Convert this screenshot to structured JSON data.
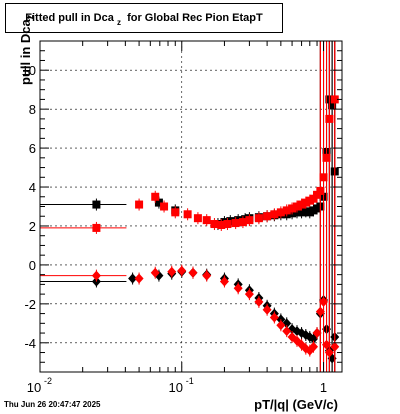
{
  "title_main": "Fitted pull in Dca",
  "title_sub": "z",
  "title_rest": "for Global Rec Pion EtapT",
  "ylabel_main": "pull in Dca",
  "ylabel_sub": "z",
  "xlabel": "pT/|q| (GeV/c)",
  "footer": "Thu Jun 26 20:47:47 2025",
  "chart_data": {
    "type": "scatter",
    "title": "Fitted pull in Dca z for Global Rec Pion EtapT",
    "xlabel": "pT/|q| (GeV/c)",
    "ylabel": "pull in Dca z",
    "xscale": "log",
    "xlim": [
      0.01,
      1.35
    ],
    "ylim": [
      -5.5,
      11.5
    ],
    "grid": true,
    "x_ticks": [
      0.01,
      0.1,
      1
    ],
    "x_tick_labels": [
      "10",
      "10",
      "1"
    ],
    "x_tick_exponents": [
      "-2",
      "-1",
      ""
    ],
    "y_ticks": [
      -4,
      -2,
      0,
      2,
      4,
      6,
      8,
      10
    ],
    "y_tick_labels": [
      "-4",
      "-2",
      "0",
      "2",
      "4",
      "6",
      "8",
      "10"
    ],
    "series": [
      {
        "color": "#000000",
        "marker": "square",
        "x": [
          0.025,
          0.069,
          0.09,
          0.18,
          0.2,
          0.22,
          0.25,
          0.28,
          0.3,
          0.35,
          0.4,
          0.45,
          0.5,
          0.55,
          0.6,
          0.65,
          0.7,
          0.75,
          0.8,
          0.85,
          0.9,
          0.95,
          1.0,
          1.05,
          1.1,
          1.15,
          1.2
        ],
        "y": [
          3.1,
          3.2,
          2.8,
          2.1,
          2.2,
          2.25,
          2.3,
          2.35,
          2.4,
          2.45,
          2.5,
          2.55,
          2.6,
          2.6,
          2.65,
          2.7,
          2.7,
          2.75,
          2.7,
          2.8,
          2.9,
          3.0,
          3.5,
          5.8,
          8.5,
          8.2,
          4.8
        ]
      },
      {
        "color": "#000000",
        "marker": "diamond",
        "x": [
          0.025,
          0.045,
          0.069,
          0.085,
          0.1,
          0.12,
          0.15,
          0.2,
          0.25,
          0.3,
          0.35,
          0.4,
          0.45,
          0.5,
          0.55,
          0.6,
          0.65,
          0.7,
          0.75,
          0.8,
          0.85,
          0.9,
          0.95,
          1.0,
          1.05,
          1.1,
          1.15,
          1.2
        ],
        "y": [
          -0.85,
          -0.7,
          -0.55,
          -0.45,
          -0.35,
          -0.4,
          -0.5,
          -0.7,
          -1.0,
          -1.3,
          -1.7,
          -2.1,
          -2.5,
          -2.8,
          -3.0,
          -3.3,
          -3.4,
          -3.5,
          -3.6,
          -3.7,
          -3.8,
          -3.5,
          -2.5,
          -1.8,
          -3.3,
          -4.4,
          -4.8,
          -3.7
        ]
      },
      {
        "color": "#ff0000",
        "marker": "square",
        "x": [
          0.025,
          0.05,
          0.065,
          0.075,
          0.09,
          0.11,
          0.13,
          0.15,
          0.17,
          0.19,
          0.21,
          0.24,
          0.27,
          0.3,
          0.35,
          0.4,
          0.45,
          0.5,
          0.55,
          0.6,
          0.65,
          0.7,
          0.75,
          0.8,
          0.85,
          0.9,
          0.95,
          1.0,
          1.05,
          1.1,
          1.2
        ],
        "y": [
          1.9,
          3.1,
          3.5,
          3.0,
          2.7,
          2.6,
          2.4,
          2.3,
          2.1,
          2.05,
          2.1,
          2.15,
          2.2,
          2.3,
          2.4,
          2.5,
          2.6,
          2.7,
          2.8,
          2.9,
          3.0,
          3.1,
          3.2,
          3.3,
          3.4,
          3.6,
          3.8,
          4.5,
          5.5,
          7.5,
          8.5
        ]
      },
      {
        "color": "#ff0000",
        "marker": "diamond",
        "x": [
          0.025,
          0.05,
          0.065,
          0.085,
          0.1,
          0.12,
          0.15,
          0.2,
          0.25,
          0.3,
          0.35,
          0.4,
          0.45,
          0.5,
          0.55,
          0.6,
          0.65,
          0.7,
          0.75,
          0.8,
          0.85,
          0.9,
          0.95,
          1.0,
          1.05,
          1.1,
          1.2
        ],
        "y": [
          -0.55,
          -0.7,
          -0.4,
          -0.35,
          -0.3,
          -0.4,
          -0.55,
          -0.85,
          -1.2,
          -1.5,
          -1.9,
          -2.3,
          -2.7,
          -3.1,
          -3.4,
          -3.7,
          -3.9,
          -4.1,
          -4.3,
          -4.4,
          -4.2,
          -3.5,
          -2.4,
          -1.9,
          -4.1,
          -4.5,
          -4.2
        ]
      }
    ]
  }
}
